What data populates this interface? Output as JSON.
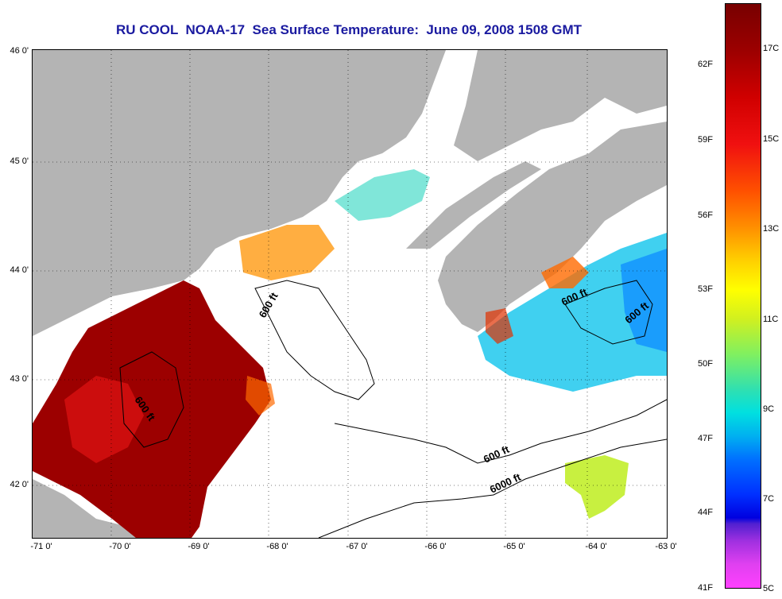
{
  "title": "RU COOL  NOAA-17  Sea Surface Temperature:  June 09, 2008 1508 GMT",
  "x_ticks": [
    "-71 0'",
    "-70 0'",
    "-69 0'",
    "-68 0'",
    "-67 0'",
    "-66 0'",
    "-65 0'",
    "-64 0'",
    "-63 0'"
  ],
  "y_ticks": [
    "46 0'",
    "45 0'",
    "44 0'",
    "43 0'",
    "42 0'"
  ],
  "contour_labels": [
    "600 ft",
    "600 ft",
    "600 ft",
    "600 ft",
    "600 ft",
    "6000 ft"
  ],
  "colorbar": {
    "fahrenheit": [
      "62F",
      "59F",
      "56F",
      "53F",
      "50F",
      "47F",
      "44F",
      "41F"
    ],
    "celsius": [
      "17C",
      "15C",
      "13C",
      "11C",
      "9C",
      "7C",
      "5C"
    ]
  },
  "colors": {
    "land": "#b4b4b4",
    "title": "#1a1aa0",
    "warm": "#9c0000",
    "cool": "#40d0f0"
  }
}
